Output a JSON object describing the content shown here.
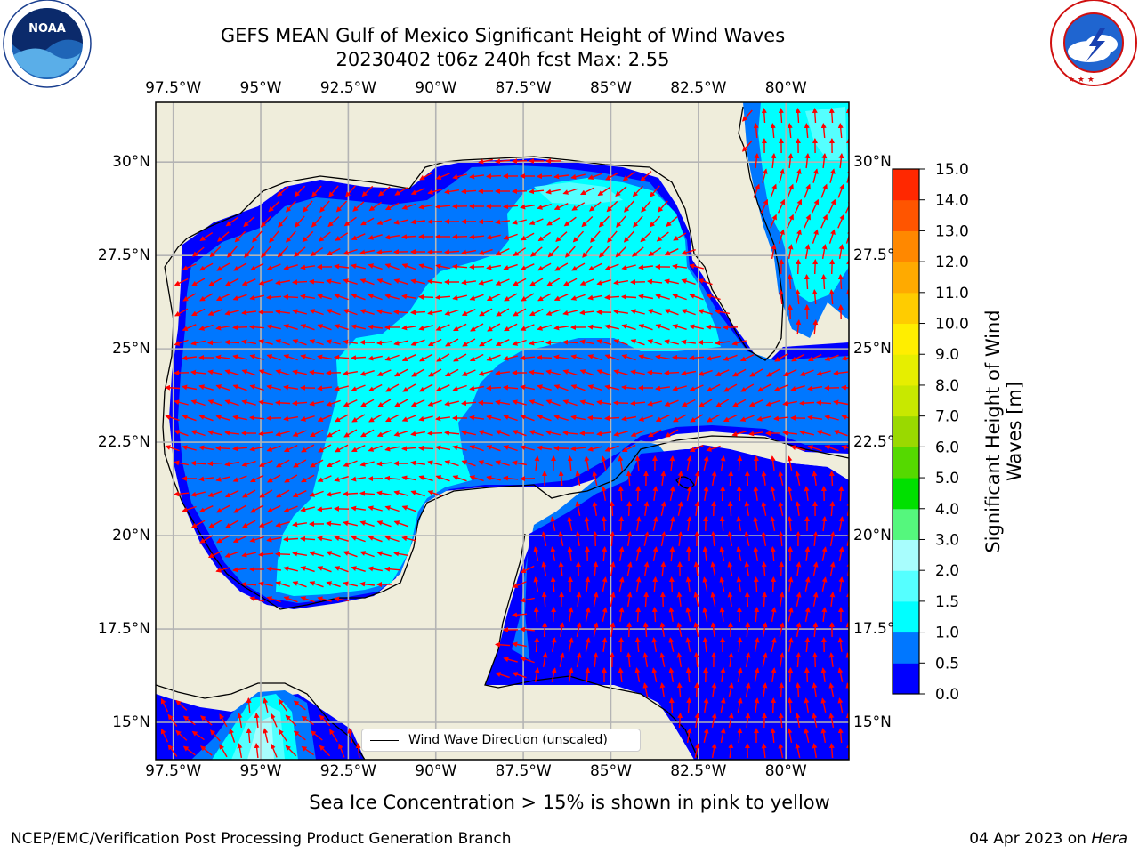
{
  "header": {
    "title": "GEFS MEAN Gulf of Mexico Significant Height of Wind Waves",
    "subtitle": "20230402 t06z 240h fcst   Max: 2.55"
  },
  "logos": {
    "noaa": {
      "text": "NOAA",
      "ring_text": "NATIONAL OCEANIC AND ATMOSPHERIC ADMINISTRATION · U.S. DEPARTMENT OF COMMERCE"
    },
    "nws": {
      "ring_text": "NATIONAL WEATHER SERVICE"
    }
  },
  "map": {
    "lon_ticks": [
      "97.5°W",
      "95°W",
      "92.5°W",
      "90°W",
      "87.5°W",
      "85°W",
      "82.5°W",
      "80°W"
    ],
    "lon_values": [
      -97.5,
      -95,
      -92.5,
      -90,
      -87.5,
      -85,
      -82.5,
      -80
    ],
    "lat_ticks_left": [
      "30°N",
      "27.5°N",
      "25°N",
      "22.5°N",
      "20°N",
      "17.5°N",
      "15°N"
    ],
    "lat_ticks_right": [
      "30°N",
      "27.5°",
      "25°N",
      "22.5°",
      "20°N",
      "17.5°",
      "15°N"
    ],
    "lat_values": [
      30,
      27.5,
      25,
      22.5,
      20,
      17.5,
      15
    ],
    "lon_range": [
      -98,
      -78.2
    ],
    "lat_range": [
      14,
      31.6
    ],
    "land_color": "#efeddb",
    "grid": true,
    "vector_color": "#ff0000",
    "legend": {
      "label": "Wind Wave Direction (unscaled)",
      "location": "lower center"
    }
  },
  "colorbar": {
    "label": "Significant Height of Wind Waves [m]",
    "label_lines": [
      "Significant Height of Wind",
      "Waves [m]"
    ],
    "ticks": [
      "0.0",
      "0.5",
      "1.0",
      "1.5",
      "2.0",
      "3.0",
      "4.0",
      "5.0",
      "6.0",
      "7.0",
      "8.0",
      "9.0",
      "10.0",
      "11.0",
      "12.0",
      "13.0",
      "14.0",
      "15.0"
    ],
    "colors": [
      "#0000ff",
      "#0077ff",
      "#00ffff",
      "#55ffff",
      "#a8fdfd",
      "#55f77d",
      "#00e000",
      "#55d900",
      "#9ad900",
      "#c8e800",
      "#e6ee00",
      "#ffee00",
      "#ffcc00",
      "#ffaa00",
      "#ff8800",
      "#ff5500",
      "#ff2800"
    ]
  },
  "footer": {
    "note": "Sea Ice Concentration > 15% is shown in pink to yellow",
    "left": "NCEP/EMC/Verification Post Processing Product Generation Branch",
    "right_date": "04 Apr 2023 on ",
    "right_machine": "Hera"
  }
}
